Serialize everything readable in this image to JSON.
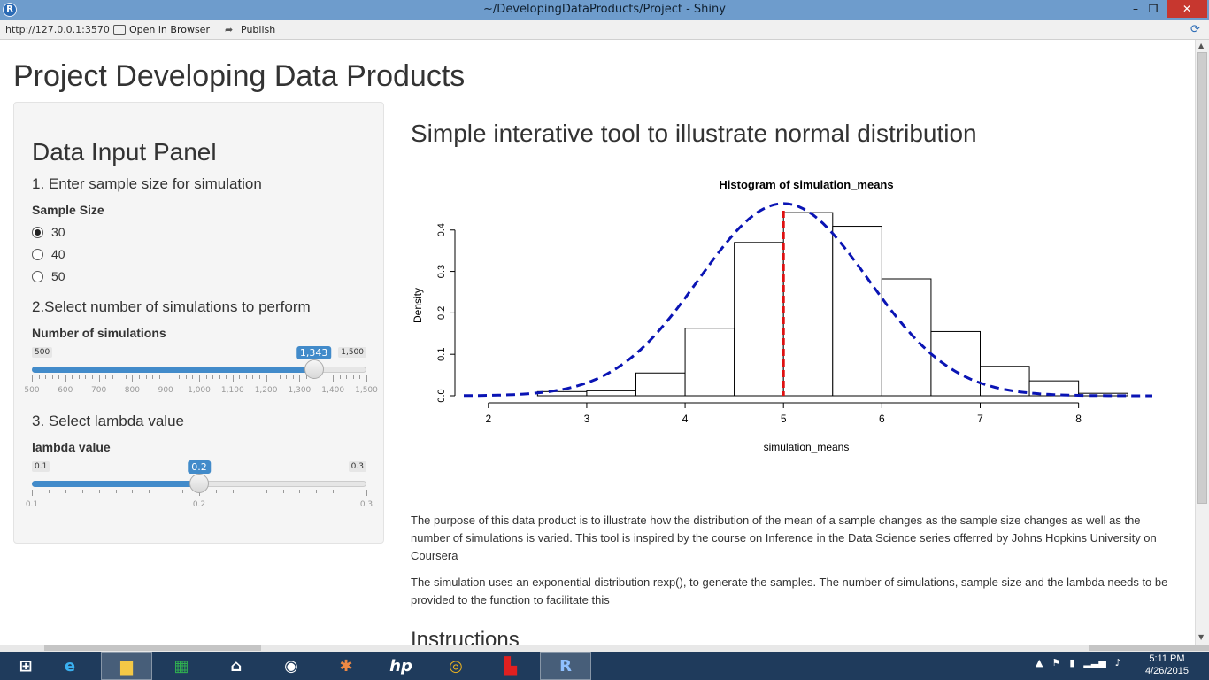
{
  "window": {
    "title": "~/DevelopingDataProducts/Project - Shiny",
    "minimize": "–",
    "maximize": "❐",
    "close": "✕"
  },
  "toolbar": {
    "url": "http://127.0.0.1:3570",
    "open_in_browser": "Open in Browser",
    "publish": "Publish"
  },
  "page": {
    "title": "Project Developing Data Products",
    "main_title": "Simple interative tool to illustrate normal distribution",
    "paragraph1": "The purpose of this data product is to illustrate how the distribution of the mean of a sample changes as the sample size changes as well as the number of simulations is varied. This tool is inspired by the course on Inference in the Data Science series offerred by Johns Hopkins University on Coursera",
    "paragraph2": "The simulation uses an exponential distribution rexp(), to generate the samples. The number of simulations, sample size and the lambda needs to be provided to the function to facilitate this",
    "instructions": "Instructions"
  },
  "panel": {
    "heading": "Data Input Panel",
    "step1": "1. Enter sample size for simulation",
    "sample_size_label": "Sample Size",
    "sample_options": [
      {
        "label": "30",
        "checked": true
      },
      {
        "label": "40",
        "checked": false
      },
      {
        "label": "50",
        "checked": false
      }
    ],
    "step2": "2.Select number of simulations to perform",
    "simulations_label": "Number of simulations",
    "simulations": {
      "min_label": "500",
      "max_label": "1,500",
      "value_label": "1,343",
      "min": 500,
      "max": 1500,
      "value": 1343,
      "tick_labels": [
        "500",
        "600",
        "700",
        "800",
        "900",
        "1,000",
        "1,100",
        "1,200",
        "1,300",
        "1,400",
        "1,500"
      ]
    },
    "step3": "3. Select lambda value",
    "lambda_label": "lambda value",
    "lambda": {
      "min_label": "0.1",
      "max_label": "0.3",
      "value_label": "0.2",
      "min": 0.1,
      "max": 0.3,
      "value": 0.2,
      "tick_labels": [
        "0.1",
        "0.2",
        "0.3"
      ]
    }
  },
  "chart_data": {
    "type": "bar",
    "title": "Histogram of simulation_means",
    "xlabel": "simulation_means",
    "ylabel": "Density",
    "bin_edges": [
      2.0,
      2.5,
      3.0,
      3.5,
      4.0,
      4.5,
      5.0,
      5.5,
      6.0,
      6.5,
      7.0,
      7.5,
      8.0,
      8.5
    ],
    "values": [
      0.0,
      0.01,
      0.012,
      0.055,
      0.163,
      0.37,
      0.442,
      0.409,
      0.282,
      0.155,
      0.071,
      0.036,
      0.006,
      0.002
    ],
    "xticks": [
      "2",
      "3",
      "4",
      "5",
      "6",
      "7",
      "8"
    ],
    "yticks": [
      "0.0",
      "0.1",
      "0.2",
      "0.3",
      "0.4"
    ],
    "xlim": [
      1.75,
      8.75
    ],
    "ylim": [
      0,
      0.47
    ],
    "mean_line": {
      "x": 5.0,
      "color": "#e01010"
    },
    "normal_curve": {
      "mean": 5.0,
      "sd": 0.86,
      "color": "#0a14b4"
    }
  },
  "taskbar": {
    "items": [
      "start",
      "internet-explorer",
      "file-explorer",
      "store",
      "home",
      "media",
      "paint",
      "hp",
      "chrome",
      "acrobat",
      "r"
    ],
    "time": "5:11 PM",
    "date": "4/26/2015"
  }
}
